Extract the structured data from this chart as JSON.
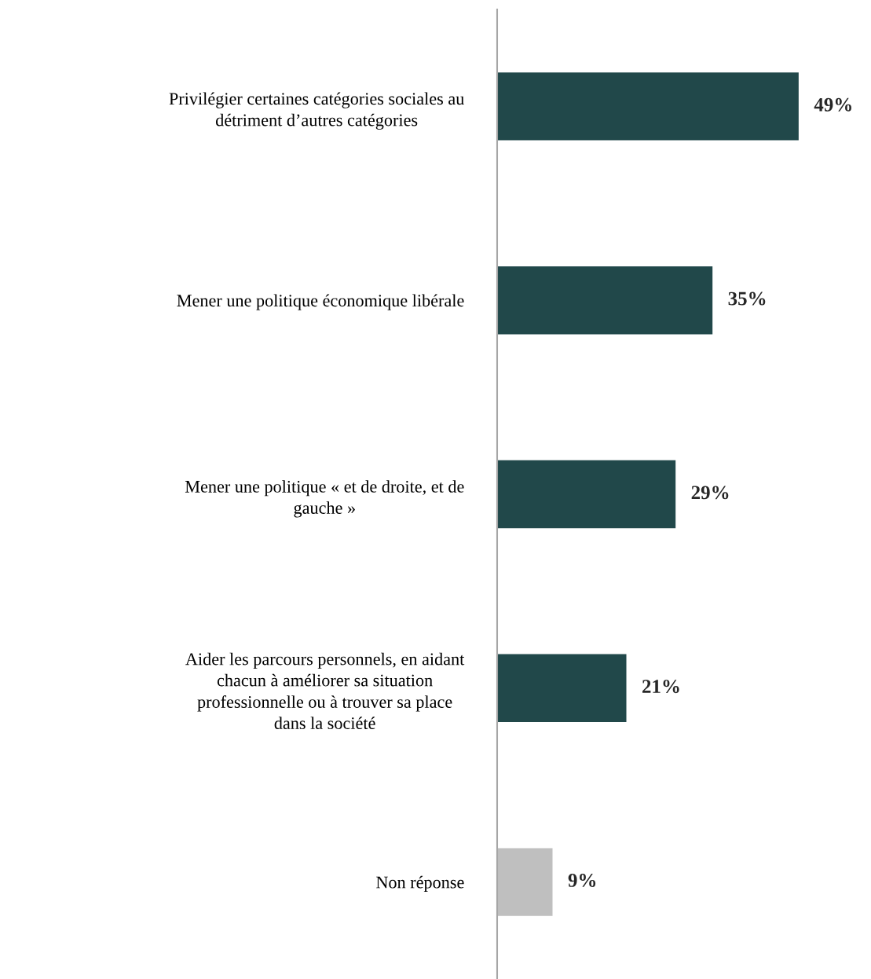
{
  "chart_data": {
    "type": "bar",
    "orientation": "horizontal",
    "categories": [
      "Privilégier certaines catégories sociales au\ndétriment d’autres catégories",
      "Mener une politique économique libérale",
      "Mener une politique « et de droite, et de\ngauche »",
      "Aider les parcours personnels, en aidant\nchacun à améliorer sa situation\nprofessionnelle ou à trouver sa place\ndans la société",
      "Non réponse"
    ],
    "values": [
      49,
      35,
      29,
      21,
      9
    ],
    "value_labels": [
      "49%",
      "35%",
      "29%",
      "21%",
      "9%"
    ],
    "colors": [
      "#21484a",
      "#21484a",
      "#21484a",
      "#21484a",
      "#bfbfbf"
    ],
    "grid": false,
    "legend": false
  }
}
